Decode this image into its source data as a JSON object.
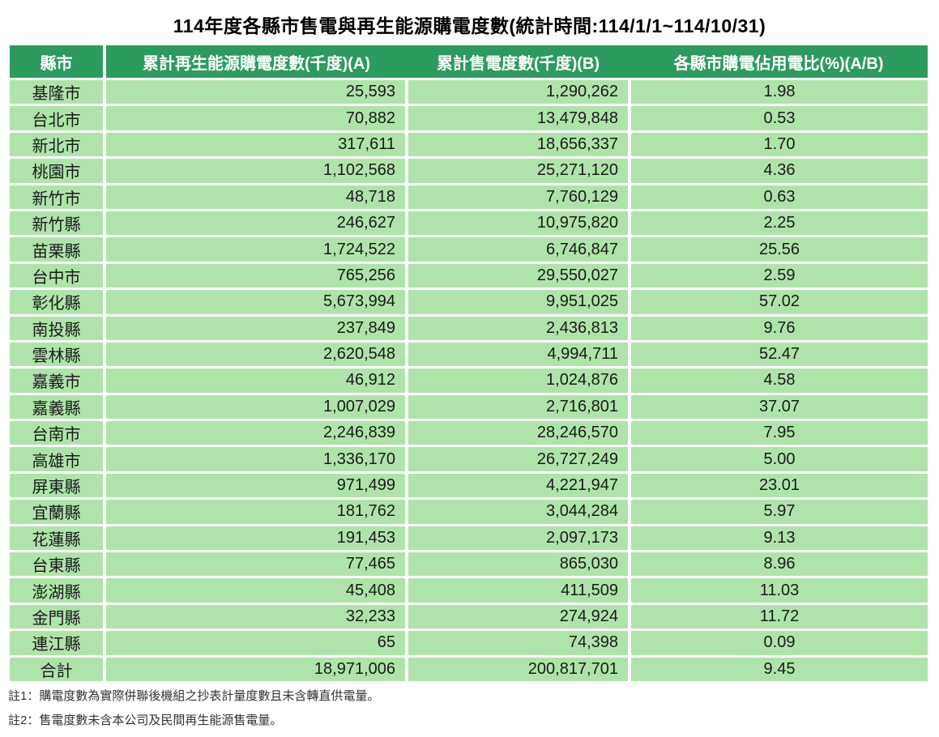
{
  "chart_data": {
    "type": "table",
    "title": "114年度各縣市售電與再生能源購電度數(統計時間:114/1/1~114/10/31)",
    "columns": [
      "縣市",
      "累計再生能源購電度數(千度)(A)",
      "累計售電度數(千度)(B)",
      "各縣市購電佔用電比(%)(A/B)"
    ],
    "rows": [
      [
        "基隆市",
        "25,593",
        "1,290,262",
        "1.98"
      ],
      [
        "台北市",
        "70,882",
        "13,479,848",
        "0.53"
      ],
      [
        "新北市",
        "317,611",
        "18,656,337",
        "1.70"
      ],
      [
        "桃園市",
        "1,102,568",
        "25,271,120",
        "4.36"
      ],
      [
        "新竹市",
        "48,718",
        "7,760,129",
        "0.63"
      ],
      [
        "新竹縣",
        "246,627",
        "10,975,820",
        "2.25"
      ],
      [
        "苗栗縣",
        "1,724,522",
        "6,746,847",
        "25.56"
      ],
      [
        "台中市",
        "765,256",
        "29,550,027",
        "2.59"
      ],
      [
        "彰化縣",
        "5,673,994",
        "9,951,025",
        "57.02"
      ],
      [
        "南投縣",
        "237,849",
        "2,436,813",
        "9.76"
      ],
      [
        "雲林縣",
        "2,620,548",
        "4,994,711",
        "52.47"
      ],
      [
        "嘉義市",
        "46,912",
        "1,024,876",
        "4.58"
      ],
      [
        "嘉義縣",
        "1,007,029",
        "2,716,801",
        "37.07"
      ],
      [
        "台南市",
        "2,246,839",
        "28,246,570",
        "7.95"
      ],
      [
        "高雄市",
        "1,336,170",
        "26,727,249",
        "5.00"
      ],
      [
        "屏東縣",
        "971,499",
        "4,221,947",
        "23.01"
      ],
      [
        "宜蘭縣",
        "181,762",
        "3,044,284",
        "5.97"
      ],
      [
        "花蓮縣",
        "191,453",
        "2,097,173",
        "9.13"
      ],
      [
        "台東縣",
        "77,465",
        "865,030",
        "8.96"
      ],
      [
        "澎湖縣",
        "45,408",
        "411,509",
        "11.03"
      ],
      [
        "金門縣",
        "32,233",
        "274,924",
        "11.72"
      ],
      [
        "連江縣",
        "65",
        "74,398",
        "0.09"
      ],
      [
        "合計",
        "18,971,006",
        "200,817,701",
        "9.45"
      ]
    ],
    "notes": [
      "註1：購電度數為實際併聯後機組之抄表計量度數且未含轉直供電量。",
      "註2：售電度數未含本公司及民間再生能源售電量。"
    ]
  },
  "colors": {
    "header_bg": "#2D9B5D",
    "row_bg": "#AEE4A9",
    "header_text": "#FFFFFF",
    "body_text": "#1A1A1A",
    "note_text": "#333333",
    "page_bg": "#FFFFFF"
  }
}
